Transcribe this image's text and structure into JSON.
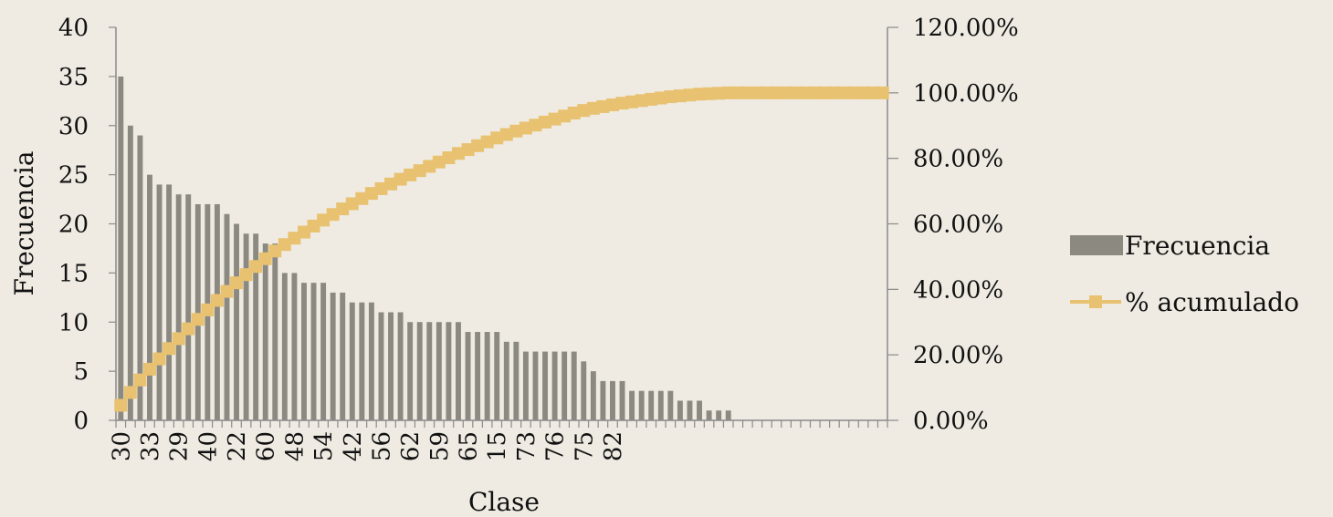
{
  "chart_data": {
    "type": "bar+line",
    "xlabel": "Clase",
    "ylabel": "Frecuencia",
    "y_left": {
      "min": 0,
      "max": 40,
      "ticks": [
        0,
        5,
        10,
        15,
        20,
        25,
        30,
        35,
        40
      ]
    },
    "y_right": {
      "min": 0,
      "max": 1.2,
      "tick_labels": [
        "0.00%",
        "20.00%",
        "40.00%",
        "60.00%",
        "80.00%",
        "100.00%",
        "120.00%"
      ]
    },
    "x_tick_labels": [
      "30",
      "33",
      "29",
      "40",
      "22",
      "60",
      "48",
      "54",
      "42",
      "56",
      "62",
      "59",
      "65",
      "15",
      "73",
      "76",
      "75",
      "82"
    ],
    "category_count": 80,
    "label_step": 3,
    "legend": {
      "position": "right"
    },
    "series": [
      {
        "name": "Frecuencia",
        "type": "bar",
        "color": "#8c8a80",
        "values": [
          35,
          30,
          29,
          25,
          24,
          24,
          23,
          23,
          22,
          22,
          22,
          21,
          20,
          19,
          19,
          18,
          18,
          15,
          15,
          14,
          14,
          14,
          13,
          13,
          12,
          12,
          12,
          11,
          11,
          11,
          10,
          10,
          10,
          10,
          10,
          10,
          9,
          9,
          9,
          9,
          8,
          8,
          7,
          7,
          7,
          7,
          7,
          7,
          6,
          5,
          4,
          4,
          4,
          3,
          3,
          3,
          3,
          3,
          2,
          2,
          2,
          1,
          1,
          1,
          0,
          0,
          0,
          0,
          0,
          0,
          0,
          0,
          0,
          0,
          0,
          0,
          0,
          0,
          0,
          0
        ]
      },
      {
        "name": "% acumulado",
        "type": "line",
        "color": "#e8c270",
        "marker": "square",
        "values": "cumulative share of Frecuencia"
      }
    ]
  }
}
